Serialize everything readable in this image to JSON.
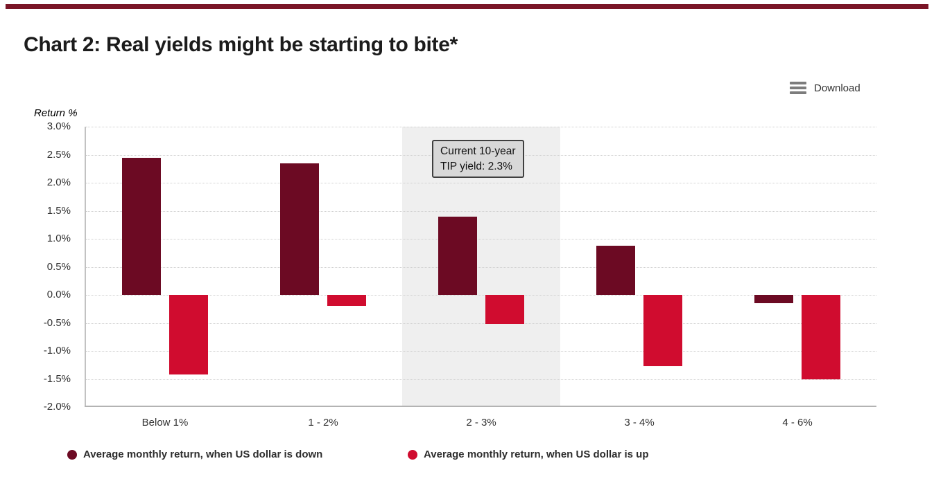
{
  "accent_bar_color": "#7a1527",
  "toolbar": {
    "download_label": "Download",
    "menu_icon": "hamburger-icon"
  },
  "chart_data": {
    "type": "bar",
    "title": "Chart 2: Real yields might be starting to bite*",
    "ylabel": "Return %",
    "xlabel": "",
    "categories": [
      "Below 1%",
      "1 - 2%",
      "2 - 3%",
      "3 - 4%",
      "4 - 6%"
    ],
    "series": [
      {
        "name": "Average monthly return, when US dollar is down",
        "color": "#6c0a23",
        "values": [
          2.45,
          2.35,
          1.4,
          0.88,
          -0.15
        ]
      },
      {
        "name": "Average monthly return, when US dollar is up",
        "color": "#d00c2f",
        "values": [
          -1.42,
          -0.2,
          -0.52,
          -1.27,
          -1.5
        ]
      }
    ],
    "ylim": [
      -2.0,
      3.0
    ],
    "ytick_step": 0.5,
    "ytick_labels": [
      "3.0%",
      "2.5%",
      "2.0%",
      "1.5%",
      "1.0%",
      "0.5%",
      "0.0%",
      "-0.5%",
      "-1.0%",
      "-1.5%",
      "-2.0%"
    ],
    "grid": "horizontal-dotted",
    "grid_color": "#cfcfcf",
    "axis_color": "#b3b3b3",
    "legend_position": "bottom",
    "highlight_band": {
      "category": "2 - 3%",
      "category_index": 2,
      "color": "#efefef"
    },
    "annotation": {
      "line1": "Current 10-year",
      "line2": "TIP yield: 2.3%",
      "bg": "#d8d8d8",
      "border": "#3f3f3f"
    }
  }
}
